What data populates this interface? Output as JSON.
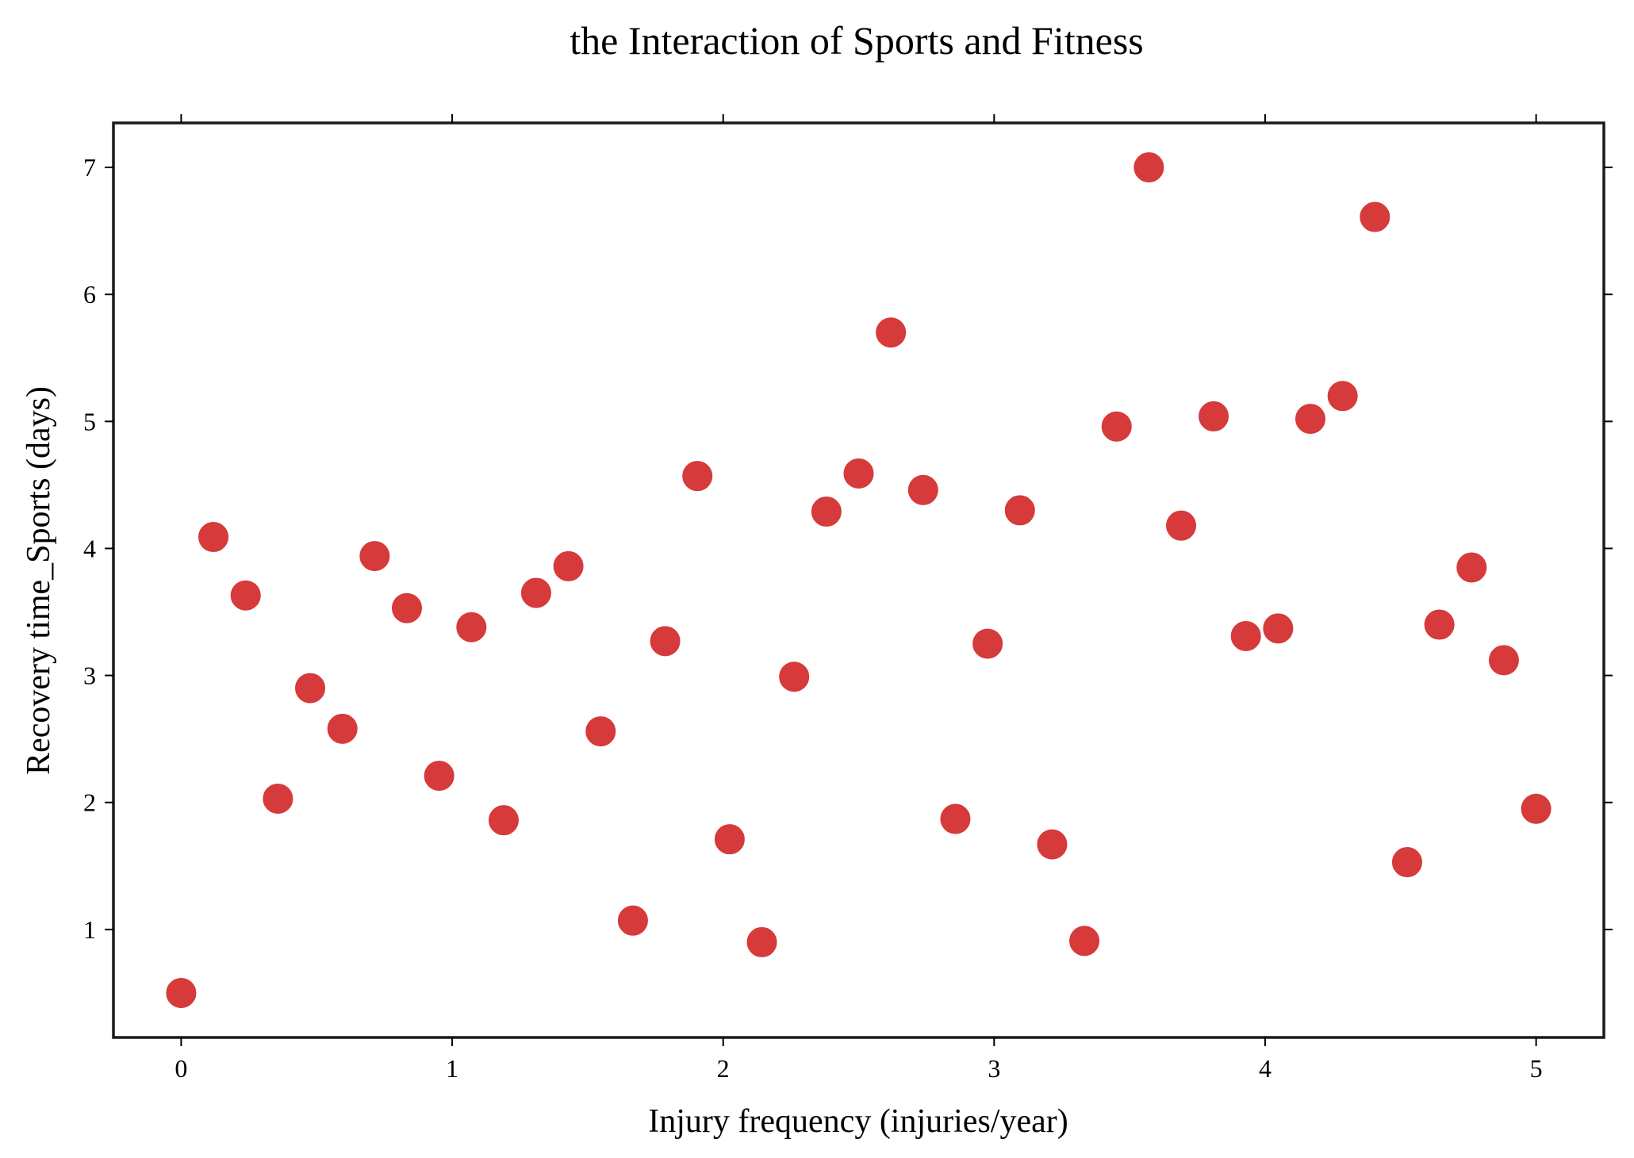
{
  "chart_data": {
    "type": "scatter",
    "title": "the Interaction of Sports and Fitness",
    "xlabel": "Injury frequency (injuries/year)",
    "ylabel": "Recovery time_Sports (days)",
    "xlim": [
      -0.25,
      5.25
    ],
    "ylim": [
      0.15,
      7.35
    ],
    "xticks": [
      0,
      1,
      2,
      3,
      4,
      5
    ],
    "yticks": [
      1,
      2,
      3,
      4,
      5,
      6,
      7
    ],
    "grid": false,
    "legend": "none",
    "marker_color": "#d63a3a",
    "series": [
      {
        "x": [
          0.0,
          0.119,
          0.238,
          0.357,
          0.476,
          0.595,
          0.714,
          0.833,
          0.952,
          1.071,
          1.19,
          1.31,
          1.429,
          1.548,
          1.667,
          1.786,
          1.905,
          2.024,
          2.143,
          2.262,
          2.381,
          2.5,
          2.619,
          2.738,
          2.857,
          2.976,
          3.095,
          3.214,
          3.333,
          3.452,
          3.571,
          3.69,
          3.81,
          3.929,
          4.048,
          4.167,
          4.286,
          4.405,
          4.524,
          4.643,
          4.762,
          4.881,
          5.0
        ],
        "y": [
          0.5,
          4.09,
          3.63,
          2.03,
          2.9,
          2.58,
          3.94,
          3.53,
          2.21,
          3.38,
          1.86,
          3.65,
          3.86,
          2.56,
          1.07,
          3.27,
          4.57,
          1.71,
          0.9,
          2.99,
          4.29,
          4.59,
          5.7,
          4.46,
          1.87,
          3.25,
          4.3,
          1.67,
          0.91,
          4.96,
          7.0,
          4.18,
          5.04,
          3.31,
          3.37,
          5.02,
          5.2,
          6.61,
          1.53,
          3.4,
          3.85,
          3.12,
          1.95
        ]
      }
    ]
  }
}
